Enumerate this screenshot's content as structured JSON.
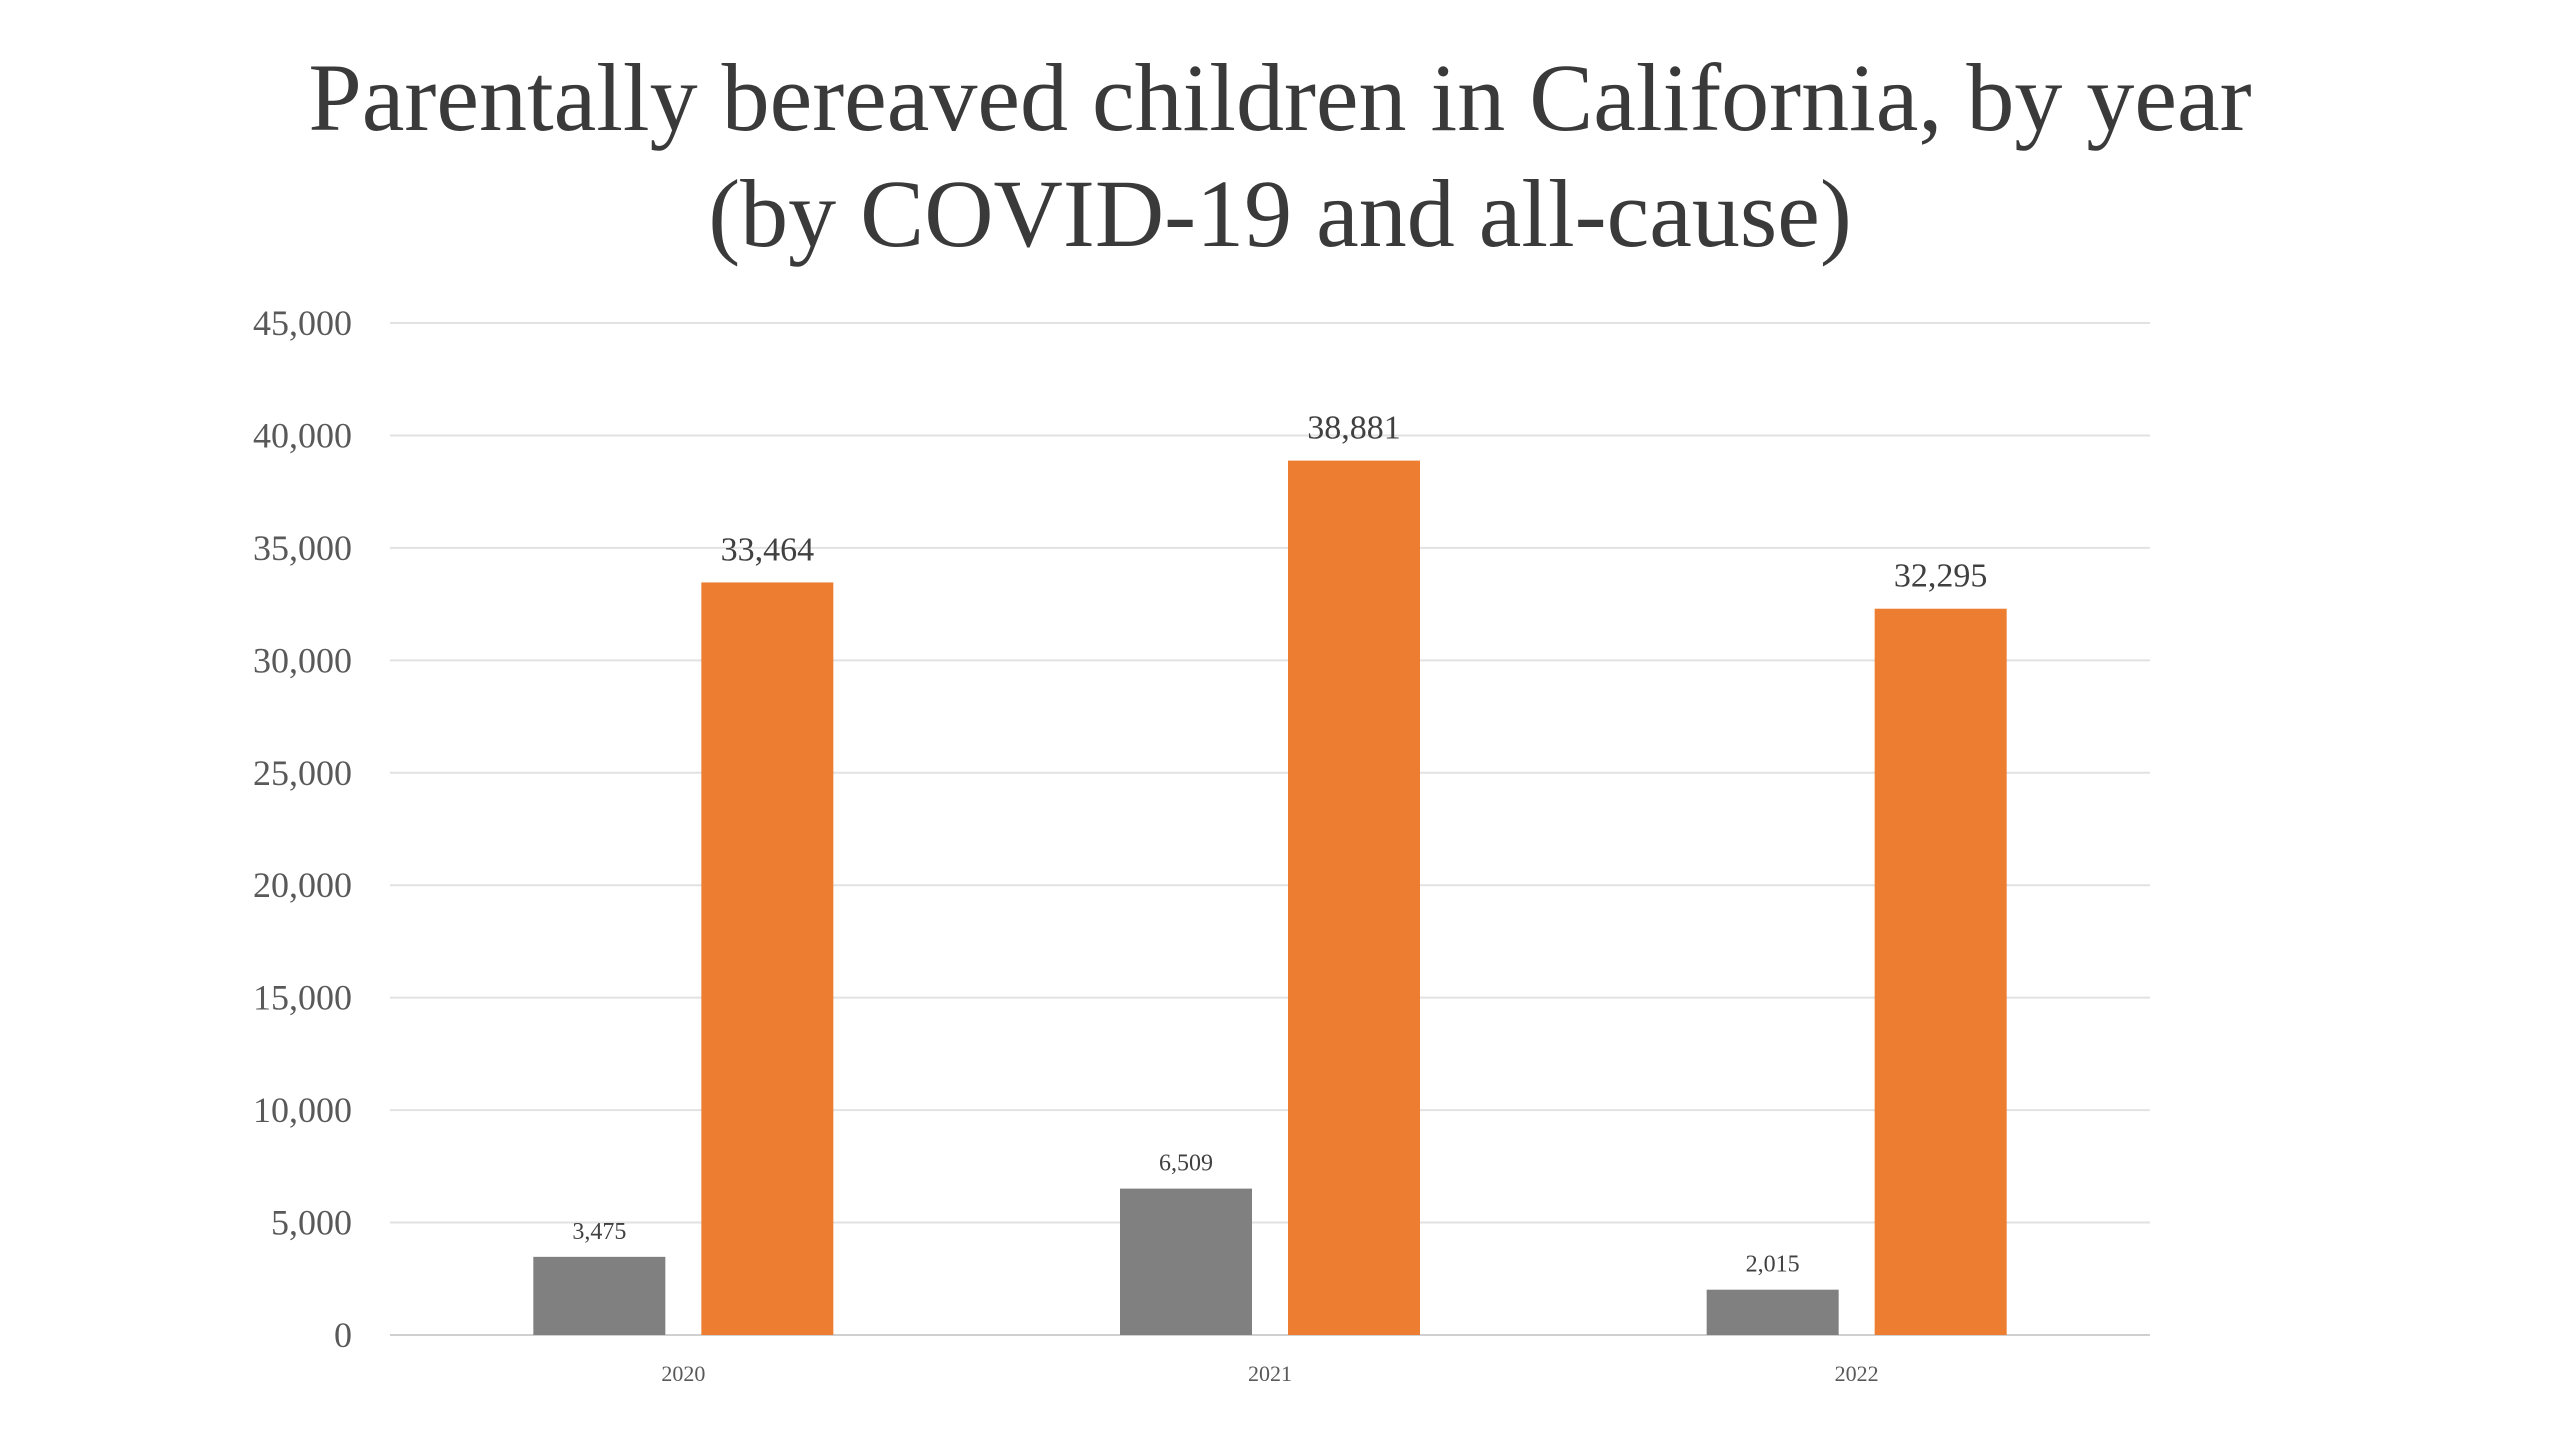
{
  "chart_data": {
    "type": "bar",
    "title_lines": [
      "Parentally bereaved children in California, by year",
      "(by COVID-19 and all-cause)"
    ],
    "xlabel": "",
    "ylabel": "",
    "categories": [
      "2020",
      "2021",
      "2022"
    ],
    "series": [
      {
        "color": "#808080",
        "values": [
          3475,
          6509,
          2015
        ],
        "labels": [
          "3,475",
          "6,509",
          "2,015"
        ]
      },
      {
        "color": "#ED7D31",
        "values": [
          33464,
          38881,
          32295
        ],
        "labels": [
          "33,464",
          "38,881",
          "32,295"
        ]
      }
    ],
    "ylim": [
      0,
      45000
    ],
    "yticks": [
      0,
      5000,
      10000,
      15000,
      20000,
      25000,
      30000,
      35000,
      40000,
      45000
    ],
    "ytick_labels": [
      "0",
      "5,000",
      "10,000",
      "15,000",
      "20,000",
      "25,000",
      "30,000",
      "35,000",
      "40,000",
      "45,000"
    ],
    "grid": true,
    "legend": "none"
  }
}
